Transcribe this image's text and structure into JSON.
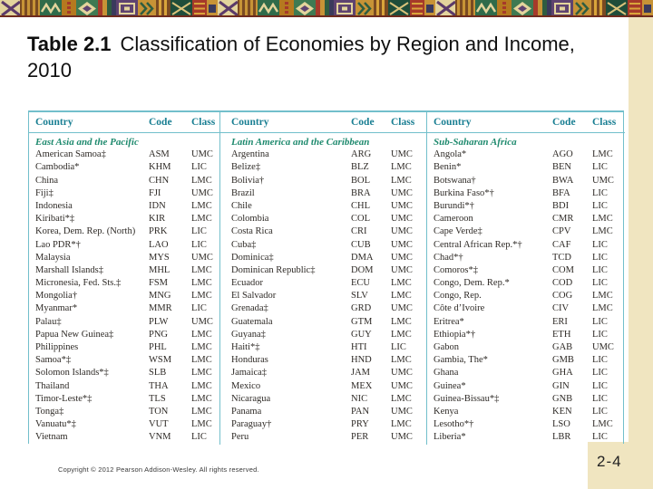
{
  "title": {
    "label": "Table 2.1",
    "text": "Classification of Economies by Region and Income, 2010"
  },
  "table": {
    "columns": [
      "Country",
      "Code",
      "Class"
    ],
    "groups": [
      {
        "region": "East Asia and the Pacific",
        "rows": [
          [
            "American Samoa‡",
            "ASM",
            "UMC"
          ],
          [
            "Cambodia*",
            "KHM",
            "LIC"
          ],
          [
            "China",
            "CHN",
            "LMC"
          ],
          [
            "Fiji‡",
            "FJI",
            "UMC"
          ],
          [
            "Indonesia",
            "IDN",
            "LMC"
          ],
          [
            "Kiribati*‡",
            "KIR",
            "LMC"
          ],
          [
            "Korea, Dem. Rep. (North)",
            "PRK",
            "LIC"
          ],
          [
            "Lao PDR*†",
            "LAO",
            "LIC"
          ],
          [
            "Malaysia",
            "MYS",
            "UMC"
          ],
          [
            "Marshall Islands‡",
            "MHL",
            "LMC"
          ],
          [
            "Micronesia, Fed. Sts.‡",
            "FSM",
            "LMC"
          ],
          [
            "Mongolia†",
            "MNG",
            "LMC"
          ],
          [
            "Myanmar*",
            "MMR",
            "LIC"
          ],
          [
            "Palau‡",
            "PLW",
            "UMC"
          ],
          [
            "Papua New Guinea‡",
            "PNG",
            "LMC"
          ],
          [
            "Philippines",
            "PHL",
            "LMC"
          ],
          [
            "Samoa*‡",
            "WSM",
            "LMC"
          ],
          [
            "Solomon Islands*‡",
            "SLB",
            "LMC"
          ],
          [
            "Thailand",
            "THA",
            "LMC"
          ],
          [
            "Timor-Leste*‡",
            "TLS",
            "LMC"
          ],
          [
            "Tonga‡",
            "TON",
            "LMC"
          ],
          [
            "Vanuatu*‡",
            "VUT",
            "LMC"
          ],
          [
            "Vietnam",
            "VNM",
            "LIC"
          ]
        ]
      },
      {
        "region": "Latin America and the Caribbean",
        "rows": [
          [
            "Argentina",
            "ARG",
            "UMC"
          ],
          [
            "Belize‡",
            "BLZ",
            "LMC"
          ],
          [
            "Bolivia†",
            "BOL",
            "LMC"
          ],
          [
            "Brazil",
            "BRA",
            "UMC"
          ],
          [
            "Chile",
            "CHL",
            "UMC"
          ],
          [
            "Colombia",
            "COL",
            "UMC"
          ],
          [
            "Costa Rica",
            "CRI",
            "UMC"
          ],
          [
            "Cuba‡",
            "CUB",
            "UMC"
          ],
          [
            "Dominica‡",
            "DMA",
            "UMC"
          ],
          [
            "Dominican Republic‡",
            "DOM",
            "UMC"
          ],
          [
            "Ecuador",
            "ECU",
            "LMC"
          ],
          [
            "El Salvador",
            "SLV",
            "LMC"
          ],
          [
            "Grenada‡",
            "GRD",
            "UMC"
          ],
          [
            "Guatemala",
            "GTM",
            "LMC"
          ],
          [
            "Guyana‡",
            "GUY",
            "LMC"
          ],
          [
            "Haiti*‡",
            "HTI",
            "LIC"
          ],
          [
            "Honduras",
            "HND",
            "LMC"
          ],
          [
            "Jamaica‡",
            "JAM",
            "UMC"
          ],
          [
            "Mexico",
            "MEX",
            "UMC"
          ],
          [
            "Nicaragua",
            "NIC",
            "LMC"
          ],
          [
            "Panama",
            "PAN",
            "UMC"
          ],
          [
            "Paraguay†",
            "PRY",
            "LMC"
          ],
          [
            "Peru",
            "PER",
            "UMC"
          ]
        ]
      },
      {
        "region": "Sub-Saharan Africa",
        "rows": [
          [
            "Angola*",
            "AGO",
            "LMC"
          ],
          [
            "Benin*",
            "BEN",
            "LIC"
          ],
          [
            "Botswana†",
            "BWA",
            "UMC"
          ],
          [
            "Burkina Faso*†",
            "BFA",
            "LIC"
          ],
          [
            "Burundi*†",
            "BDI",
            "LIC"
          ],
          [
            "Cameroon",
            "CMR",
            "LMC"
          ],
          [
            "Cape Verde‡",
            "CPV",
            "LMC"
          ],
          [
            "Central African Rep.*†",
            "CAF",
            "LIC"
          ],
          [
            "Chad*†",
            "TCD",
            "LIC"
          ],
          [
            "Comoros*‡",
            "COM",
            "LIC"
          ],
          [
            "Congo, Dem. Rep.*",
            "COD",
            "LIC"
          ],
          [
            "Congo, Rep.",
            "COG",
            "LMC"
          ],
          [
            "Côte d’Ivoire",
            "CIV",
            "LMC"
          ],
          [
            "Eritrea*",
            "ERI",
            "LIC"
          ],
          [
            "Ethiopia*†",
            "ETH",
            "LIC"
          ],
          [
            "Gabon",
            "GAB",
            "UMC"
          ],
          [
            "Gambia, The*",
            "GMB",
            "LIC"
          ],
          [
            "Ghana",
            "GHA",
            "LIC"
          ],
          [
            "Guinea*",
            "GIN",
            "LIC"
          ],
          [
            "Guinea-Bissau*‡",
            "GNB",
            "LIC"
          ],
          [
            "Kenya",
            "KEN",
            "LIC"
          ],
          [
            "Lesotho*†",
            "LSO",
            "LMC"
          ],
          [
            "Liberia*",
            "LBR",
            "LIC"
          ]
        ]
      }
    ]
  },
  "footer": {
    "copyright": "Copyright © 2012 Pearson Addison-Wesley. All rights reserved.",
    "page": "2-4"
  },
  "colors": {
    "header_teal": "#1a7f93",
    "region_green": "#1f8a6e",
    "table_line": "#72bfcb",
    "sidebar_cream": "#f0e5c0"
  }
}
